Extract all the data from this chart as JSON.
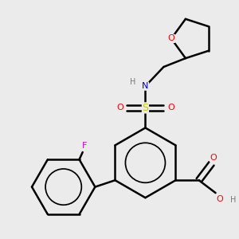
{
  "bg_color": "#ebebeb",
  "bond_color": "#000000",
  "line_width": 1.8,
  "atom_colors": {
    "O": "#ff0000",
    "N": "#0000cc",
    "S": "#cccc00",
    "F": "#cc00cc",
    "H": "#777777",
    "C": "#000000"
  },
  "font_size": 8.0
}
